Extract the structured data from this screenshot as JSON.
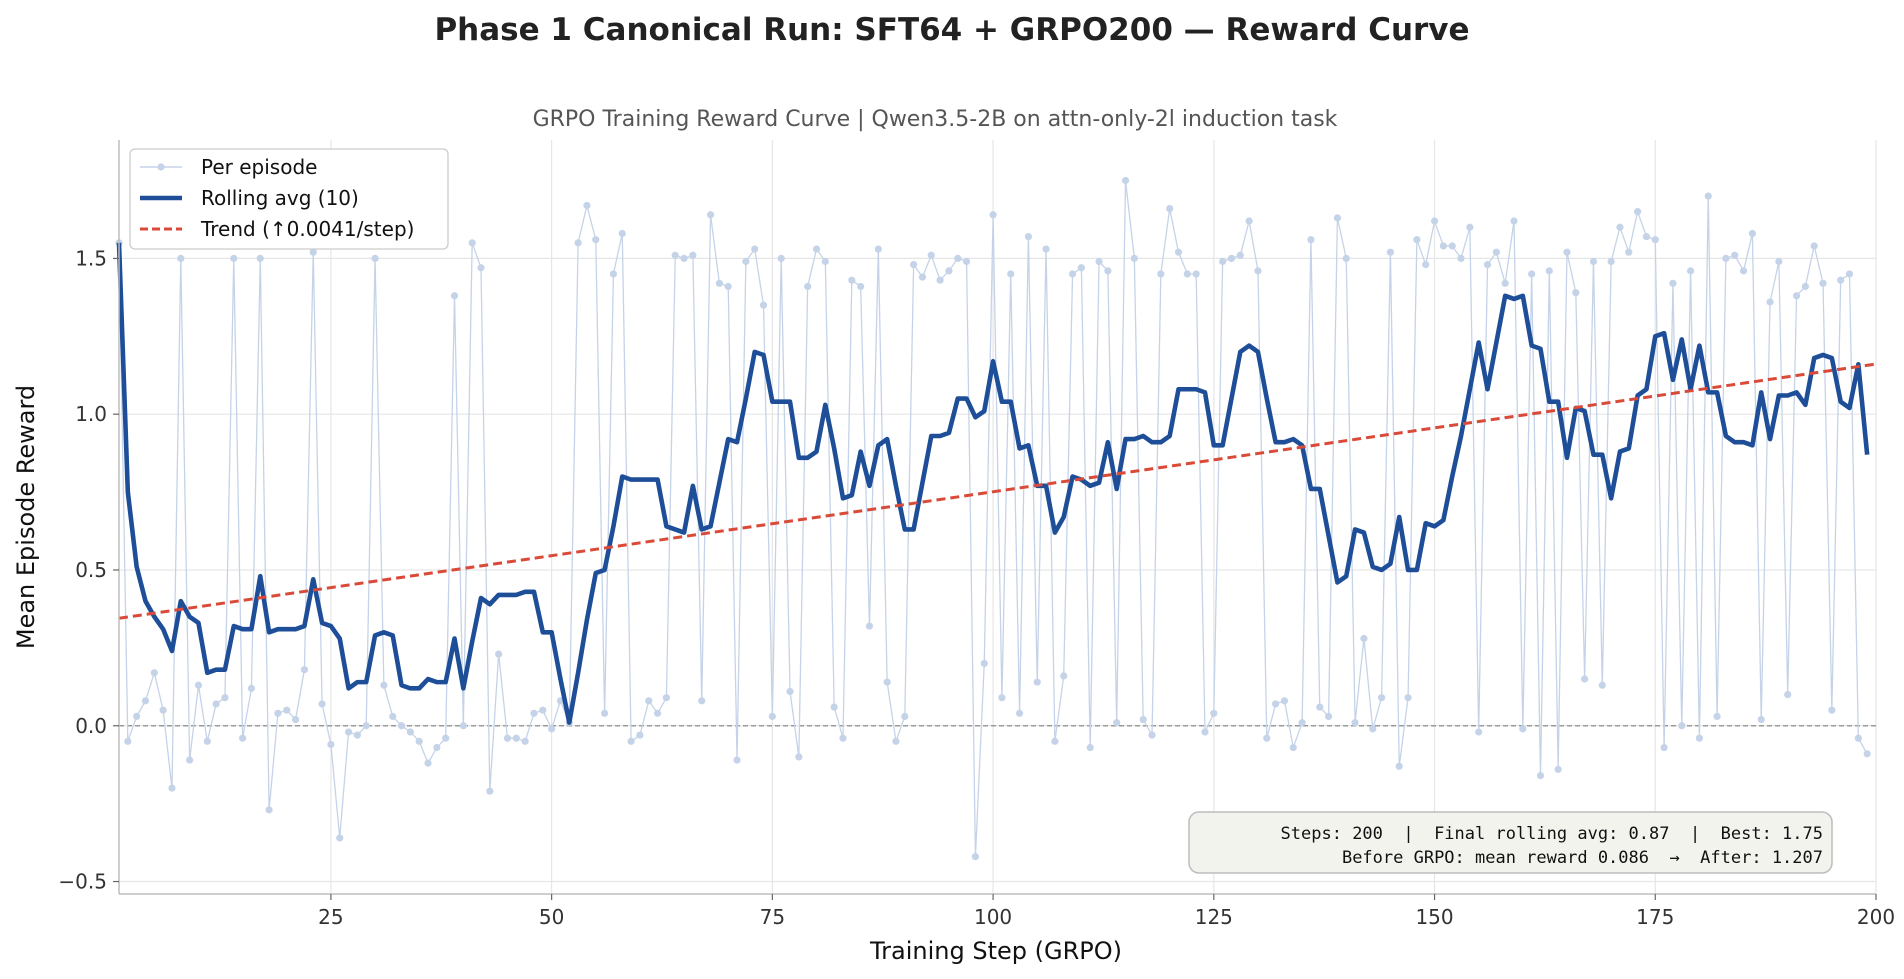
{
  "figure": {
    "suptitle": "Phase 1 Canonical Run: SFT64 + GRPO200  —  Reward Curve"
  },
  "chart_data": {
    "type": "line",
    "title": "GRPO Training Reward Curve  |  Qwen3.5-2B on attn-only-2l induction task",
    "xlabel": "Training Step (GRPO)",
    "ylabel": "Mean Episode Reward",
    "xlim": [
      1,
      200
    ],
    "ylim": [
      -0.54,
      1.88
    ],
    "xticks": [
      25,
      50,
      75,
      100,
      125,
      150,
      175,
      200
    ],
    "yticks": [
      -0.5,
      0.0,
      0.5,
      1.0,
      1.5
    ],
    "grid": true,
    "legend_position": "top-left",
    "legend": [
      "Per episode",
      "Rolling avg (10)",
      "Trend (↑0.0041/step)"
    ],
    "colors": {
      "episode": "#c5d3e8",
      "rolling": "#1f4e99",
      "trend": "#d94a38",
      "zero_line": "#999999"
    },
    "series": [
      {
        "name": "Per episode",
        "values": [
          1.55,
          -0.05,
          0.03,
          0.08,
          0.17,
          0.05,
          -0.2,
          1.5,
          -0.11,
          0.13,
          -0.05,
          0.07,
          0.09,
          1.5,
          -0.04,
          0.12,
          1.5,
          -0.27,
          0.04,
          0.05,
          0.02,
          0.18,
          1.52,
          0.07,
          -0.06,
          -0.36,
          -0.02,
          -0.03,
          0.0,
          1.5,
          0.13,
          0.03,
          0.0,
          -0.02,
          -0.05,
          -0.12,
          -0.07,
          -0.04,
          1.38,
          0.0,
          1.55,
          1.47,
          -0.21,
          0.23,
          -0.04,
          -0.04,
          -0.05,
          0.04,
          0.05,
          -0.01,
          0.08,
          0.01,
          1.55,
          1.67,
          1.56,
          0.04,
          1.45,
          1.58,
          -0.05,
          -0.03,
          0.08,
          0.04,
          0.09,
          1.51,
          1.5,
          1.51,
          0.08,
          1.64,
          1.42,
          1.41,
          -0.11,
          1.49,
          1.53,
          1.35,
          0.03,
          1.5,
          0.11,
          -0.1,
          1.41,
          1.53,
          1.49,
          0.06,
          -0.04,
          1.43,
          1.41,
          0.32,
          1.53,
          0.14,
          -0.05,
          0.03,
          1.48,
          1.44,
          1.51,
          1.43,
          1.46,
          1.5,
          1.49,
          -0.42,
          0.2,
          1.64,
          0.09,
          1.45,
          0.04,
          1.57,
          0.14,
          1.53,
          -0.05,
          0.16,
          1.45,
          1.47,
          -0.07,
          1.49,
          1.46,
          0.01,
          1.75,
          1.5,
          0.02,
          -0.03,
          1.45,
          1.66,
          1.52,
          1.45,
          1.45,
          -0.02,
          0.04,
          1.49,
          1.5,
          1.51,
          1.62,
          1.46,
          -0.04,
          0.07,
          0.08,
          -0.07,
          0.01,
          1.56,
          0.06,
          0.03,
          1.63,
          1.5,
          0.01,
          0.28,
          -0.01,
          0.09,
          1.52,
          -0.13,
          0.09,
          1.56,
          1.48,
          1.62,
          1.54,
          1.54,
          1.5,
          1.6,
          -0.02,
          1.48,
          1.52,
          1.42,
          1.62,
          -0.01,
          1.45,
          -0.16,
          1.46,
          -0.14,
          1.52,
          1.39,
          0.15,
          1.49,
          0.13,
          1.49,
          1.6,
          1.52,
          1.65,
          1.57,
          1.56,
          -0.07,
          1.42,
          0.0,
          1.46,
          -0.04,
          1.7,
          0.03,
          1.5,
          1.51,
          1.46,
          1.58,
          0.02,
          1.36,
          1.49,
          0.1,
          1.38,
          1.41,
          1.54,
          1.42,
          0.05,
          1.43,
          1.45,
          -0.04,
          -0.09
        ]
      },
      {
        "name": "Rolling avg (10)",
        "values": [
          1.55,
          0.75,
          0.51,
          0.4,
          0.35,
          0.31,
          0.24,
          0.4,
          0.35,
          0.33,
          0.17,
          0.18,
          0.18,
          0.32,
          0.31,
          0.31,
          0.48,
          0.3,
          0.31,
          0.31,
          0.31,
          0.32,
          0.47,
          0.33,
          0.32,
          0.28,
          0.12,
          0.14,
          0.14,
          0.29,
          0.3,
          0.29,
          0.13,
          0.12,
          0.12,
          0.15,
          0.14,
          0.14,
          0.28,
          0.12,
          0.27,
          0.41,
          0.39,
          0.42,
          0.42,
          0.42,
          0.43,
          0.43,
          0.3,
          0.3,
          0.15,
          0.01,
          0.17,
          0.34,
          0.49,
          0.5,
          0.64,
          0.8,
          0.79,
          0.79,
          0.79,
          0.79,
          0.64,
          0.63,
          0.62,
          0.77,
          0.63,
          0.64,
          0.78,
          0.92,
          0.91,
          1.05,
          1.2,
          1.19,
          1.04,
          1.04,
          1.04,
          0.86,
          0.86,
          0.88,
          1.03,
          0.89,
          0.73,
          0.74,
          0.88,
          0.77,
          0.9,
          0.92,
          0.77,
          0.63,
          0.63,
          0.78,
          0.93,
          0.93,
          0.94,
          1.05,
          1.05,
          0.99,
          1.01,
          1.17,
          1.04,
          1.04,
          0.89,
          0.9,
          0.77,
          0.77,
          0.62,
          0.67,
          0.8,
          0.79,
          0.77,
          0.78,
          0.91,
          0.76,
          0.92,
          0.92,
          0.93,
          0.91,
          0.91,
          0.93,
          1.08,
          1.08,
          1.08,
          1.07,
          0.9,
          0.9,
          1.05,
          1.2,
          1.22,
          1.2,
          1.05,
          0.91,
          0.91,
          0.92,
          0.9,
          0.76,
          0.76,
          0.61,
          0.46,
          0.48,
          0.63,
          0.62,
          0.51,
          0.5,
          0.52,
          0.67,
          0.5,
          0.5,
          0.65,
          0.64,
          0.66,
          0.8,
          0.93,
          1.08,
          1.23,
          1.08,
          1.23,
          1.38,
          1.37,
          1.38,
          1.22,
          1.21,
          1.04,
          1.04,
          0.86,
          1.02,
          1.01,
          0.87,
          0.87,
          0.73,
          0.88,
          0.89,
          1.06,
          1.08,
          1.25,
          1.26,
          1.11,
          1.24,
          1.08,
          1.22,
          1.07,
          1.07,
          0.93,
          0.91,
          0.91,
          0.9,
          1.07,
          0.92,
          1.06,
          1.06,
          1.07,
          1.03,
          1.18,
          1.19,
          1.18,
          1.04,
          1.02,
          1.16,
          0.87
        ]
      }
    ],
    "trend": {
      "name": "Trend (↑0.0041/step)",
      "x": [
        1,
        200
      ],
      "y": [
        0.345,
        1.161
      ]
    },
    "annotation": {
      "line1": "Steps: 200  |  Final rolling avg: 0.87  |  Best: 1.75",
      "line2": "Before GRPO: mean reward 0.086  →  After: 1.207"
    }
  }
}
